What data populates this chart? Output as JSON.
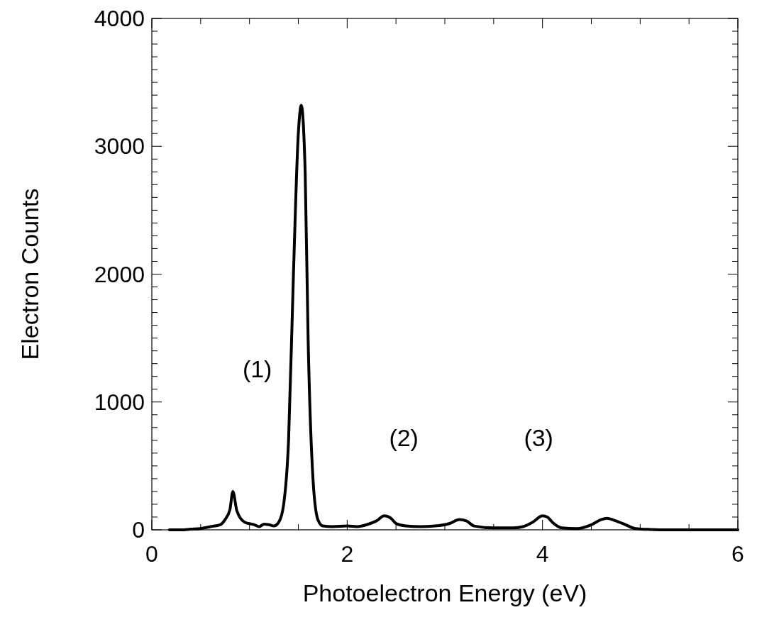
{
  "chart_data": {
    "type": "line",
    "xlabel": "Photoelectron Energy (eV)",
    "ylabel": "Electron Counts",
    "xlim": [
      0,
      6
    ],
    "ylim": [
      0,
      4000
    ],
    "xticks": [
      0,
      {
        "value": 0.5,
        "label": null
      },
      {
        "value": 1,
        "label": null
      },
      {
        "value": 1.5,
        "label": null
      },
      2,
      {
        "value": 2.5,
        "label": null
      },
      {
        "value": 3,
        "label": null
      },
      {
        "value": 3.5,
        "label": null
      },
      4,
      {
        "value": 4.5,
        "label": null
      },
      {
        "value": 5,
        "label": null
      },
      {
        "value": 5.5,
        "label": null
      },
      6
    ],
    "yticks": [
      0,
      {
        "value": 100,
        "label": null
      },
      {
        "value": 200,
        "label": null
      },
      {
        "value": 300,
        "label": null
      },
      {
        "value": 400,
        "label": null
      },
      {
        "value": 500,
        "label": null
      },
      {
        "value": 600,
        "label": null
      },
      {
        "value": 700,
        "label": null
      },
      {
        "value": 800,
        "label": null
      },
      {
        "value": 900,
        "label": null
      },
      1000,
      {
        "value": 1100,
        "label": null
      },
      {
        "value": 1200,
        "label": null
      },
      {
        "value": 1300,
        "label": null
      },
      {
        "value": 1400,
        "label": null
      },
      {
        "value": 1500,
        "label": null
      },
      {
        "value": 1600,
        "label": null
      },
      {
        "value": 1700,
        "label": null
      },
      {
        "value": 1800,
        "label": null
      },
      {
        "value": 1900,
        "label": null
      },
      2000,
      {
        "value": 2100,
        "label": null
      },
      {
        "value": 2200,
        "label": null
      },
      {
        "value": 2300,
        "label": null
      },
      {
        "value": 2400,
        "label": null
      },
      {
        "value": 2500,
        "label": null
      },
      {
        "value": 2600,
        "label": null
      },
      {
        "value": 2700,
        "label": null
      },
      {
        "value": 2800,
        "label": null
      },
      {
        "value": 2900,
        "label": null
      },
      3000,
      {
        "value": 3100,
        "label": null
      },
      {
        "value": 3200,
        "label": null
      },
      {
        "value": 3300,
        "label": null
      },
      {
        "value": 3400,
        "label": null
      },
      {
        "value": 3500,
        "label": null
      },
      {
        "value": 3600,
        "label": null
      },
      {
        "value": 3700,
        "label": null
      },
      {
        "value": 3800,
        "label": null
      },
      {
        "value": 3900,
        "label": null
      },
      4000
    ],
    "grid": false,
    "marker": "none",
    "line_style": "solid",
    "annotations": [
      "(1)",
      "(2)",
      "(3)"
    ],
    "series": [
      {
        "color": "#000000",
        "x": [
          0.18,
          0.3,
          0.4,
          0.5,
          0.6,
          0.7,
          0.75,
          0.8,
          0.83,
          0.87,
          0.95,
          1.05,
          1.1,
          1.15,
          1.2,
          1.25,
          1.3,
          1.35,
          1.4,
          1.45,
          1.5,
          1.53,
          1.57,
          1.6,
          1.65,
          1.7,
          1.75,
          1.85,
          2.0,
          2.1,
          2.2,
          2.3,
          2.38,
          2.45,
          2.5,
          2.6,
          2.75,
          2.9,
          3.05,
          3.15,
          3.22,
          3.3,
          3.5,
          3.7,
          3.8,
          3.9,
          4.0,
          4.05,
          4.1,
          4.2,
          4.35,
          4.5,
          4.6,
          4.66,
          4.75,
          4.85,
          4.95,
          5.1,
          5.3,
          5.6,
          6.0
        ],
        "values": [
          0,
          0,
          5,
          10,
          25,
          40,
          80,
          160,
          300,
          150,
          60,
          40,
          25,
          45,
          40,
          30,
          60,
          200,
          700,
          2000,
          3100,
          3320,
          2800,
          1500,
          400,
          80,
          30,
          25,
          30,
          25,
          40,
          70,
          110,
          90,
          50,
          30,
          25,
          30,
          50,
          80,
          70,
          30,
          15,
          15,
          25,
          60,
          110,
          100,
          60,
          15,
          10,
          40,
          80,
          90,
          70,
          40,
          10,
          3,
          0,
          0,
          0
        ]
      }
    ]
  }
}
